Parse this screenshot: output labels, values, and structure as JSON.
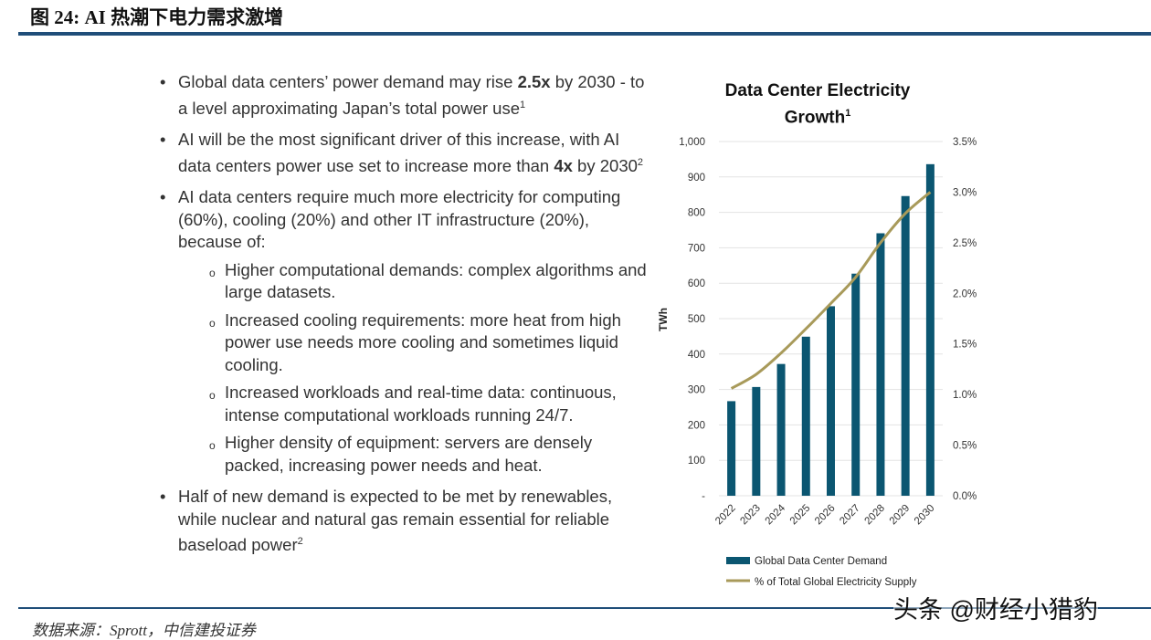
{
  "figure_title": "图 24: AI 热潮下电力需求激增",
  "bullets": [
    {
      "pre": "Global data centers’ power demand may rise ",
      "bold": "2.5x",
      "post": " by 2030 - to a level approximating Japan’s total power use",
      "sup": "1"
    },
    {
      "pre": "AI will be the most significant driver of this increase, with AI data centers power use set to increase more than ",
      "bold": "4x",
      "post": " by 2030",
      "sup": "2"
    },
    {
      "pre": "AI data centers require much more electricity for computing (60%), cooling (20%) and other IT infrastructure (20%), because of:",
      "bold": "",
      "post": "",
      "sup": ""
    }
  ],
  "sub_bullets": [
    "Higher computational demands: complex algorithms and large datasets.",
    "Increased cooling requirements: more heat from high power use needs more cooling and sometimes liquid cooling.",
    "Increased workloads and real-time data: continuous, intense computational workloads running 24/7.",
    "Higher density of equipment: servers are densely packed, increasing power needs and heat."
  ],
  "last_bullet": {
    "text": "Half of new demand is expected to be met by renewables, while nuclear and natural gas remain essential for reliable baseload power",
    "sup": "2"
  },
  "chart_data": {
    "type": "bar+line",
    "title": "Data Center Electricity Growth",
    "title_sup": "1",
    "categories": [
      "2022",
      "2023",
      "2024",
      "2025",
      "2026",
      "2027",
      "2028",
      "2029",
      "2030"
    ],
    "ylabel": "TWh",
    "ylim": [
      0,
      1000
    ],
    "y_ticks": [
      "-",
      "100",
      "200",
      "300",
      "400",
      "500",
      "600",
      "700",
      "800",
      "900",
      "1,000"
    ],
    "y2lim": [
      0,
      3.5
    ],
    "y2_ticks": [
      "0.0%",
      "0.5%",
      "1.0%",
      "1.5%",
      "2.0%",
      "2.5%",
      "3.0%",
      "3.5%"
    ],
    "grid": true,
    "legend_position": "bottom",
    "series": [
      {
        "name": "Global Data Center Demand",
        "type": "bar",
        "axis": "left",
        "color": "#0b5671",
        "values": [
          267,
          307,
          372,
          449,
          535,
          627,
          741,
          846,
          936
        ]
      },
      {
        "name": "% of Total Global Electricity Supply",
        "type": "line",
        "axis": "right",
        "color": "#a89a5a",
        "values": [
          1.06,
          1.2,
          1.41,
          1.65,
          1.9,
          2.16,
          2.5,
          2.79,
          3.0
        ]
      }
    ]
  },
  "source": "数据来源：Sprott，中信建投证券",
  "watermark": "头条 @财经小猎豹"
}
